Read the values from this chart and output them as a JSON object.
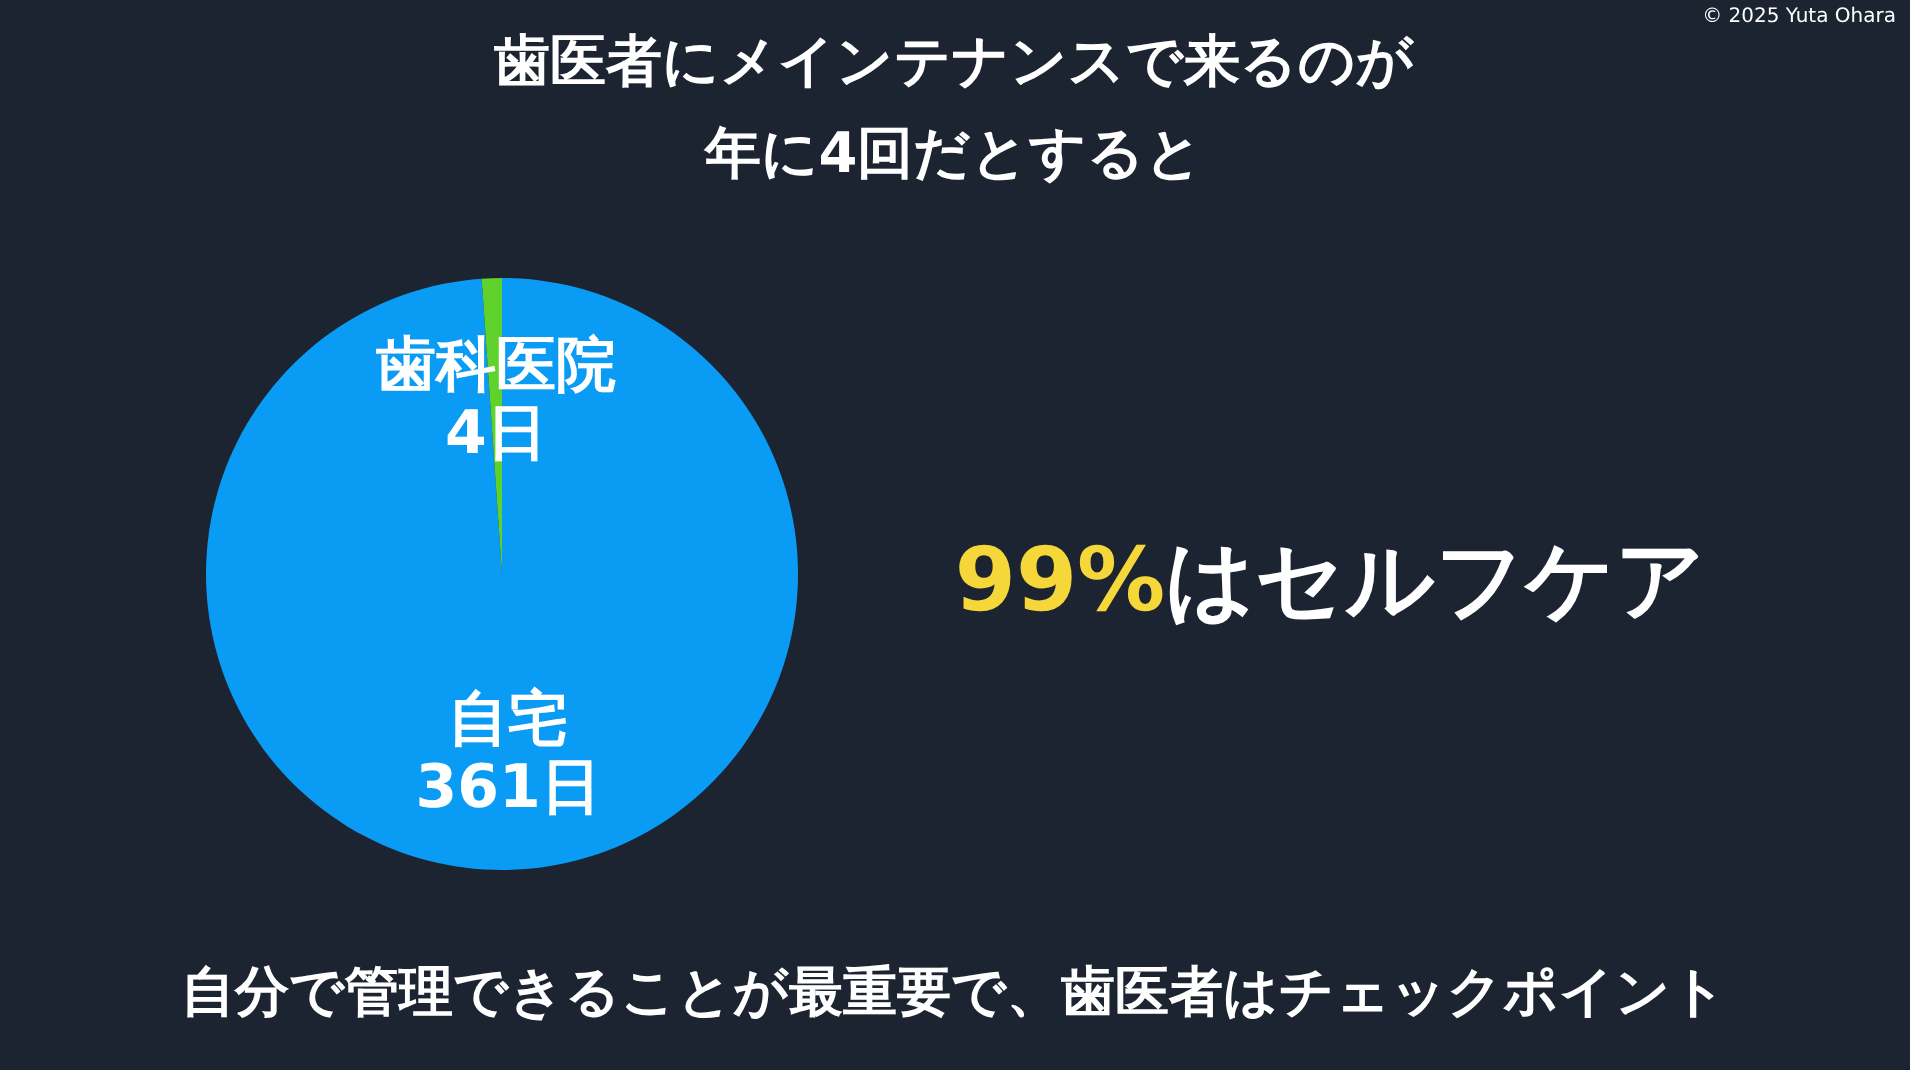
{
  "chart_data": {
    "type": "pie",
    "title": "歯医者にメインテナンスで来るのが",
    "subtitle": "年に4回だとすると",
    "categories": [
      "自宅",
      "歯科医院"
    ],
    "values": [
      361,
      4
    ],
    "value_labels": [
      "361日",
      "4日"
    ],
    "colors": [
      "#0a9cf5",
      "#5fd32b"
    ],
    "annotations": [
      "99%はセルフケア",
      "自分で管理できることが最重要で、歯医者はチェックポイント",
      "© 2025 Yuta Ohara"
    ]
  }
}
